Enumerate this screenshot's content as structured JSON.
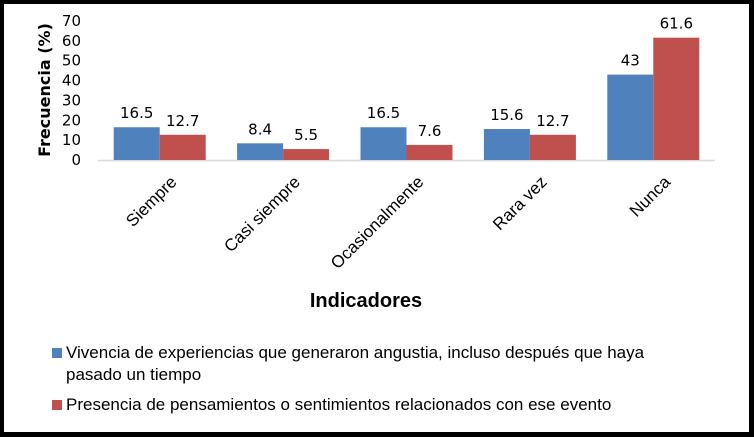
{
  "chart_data": {
    "type": "bar",
    "title": "",
    "xlabel": "Indicadores",
    "ylabel": "Frecuencia (%)",
    "ylim": [
      0,
      70
    ],
    "yticks": [
      0,
      10,
      20,
      30,
      40,
      50,
      60,
      70
    ],
    "grid": false,
    "legend_position": "bottom",
    "categories": [
      "Siempre",
      "Casi siempre",
      "Ocasionalmente",
      "Rara vez",
      "Nunca"
    ],
    "series": [
      {
        "name": "Vivencia de experiencias  que generaron angustia, incluso después que haya pasado un tiempo",
        "name_lines": [
          "Vivencia de experiencias  que generaron angustia, incluso después que haya",
          "pasado un tiempo"
        ],
        "color": "#4F81BD",
        "values": [
          16.5,
          8.4,
          16.5,
          15.6,
          43
        ],
        "labels": [
          "16.5",
          "8.4",
          "16.5",
          "15.6",
          "43"
        ]
      },
      {
        "name": "Presencia de pensamientos o sentimientos relacionados con ese evento",
        "name_lines": [
          "Presencia de pensamientos o sentimientos relacionados con ese evento"
        ],
        "color": "#C0504D",
        "values": [
          12.7,
          5.5,
          7.6,
          12.7,
          61.6
        ],
        "labels": [
          "12.7",
          "5.5",
          "7.6",
          "12.7",
          "61.6"
        ]
      }
    ]
  }
}
